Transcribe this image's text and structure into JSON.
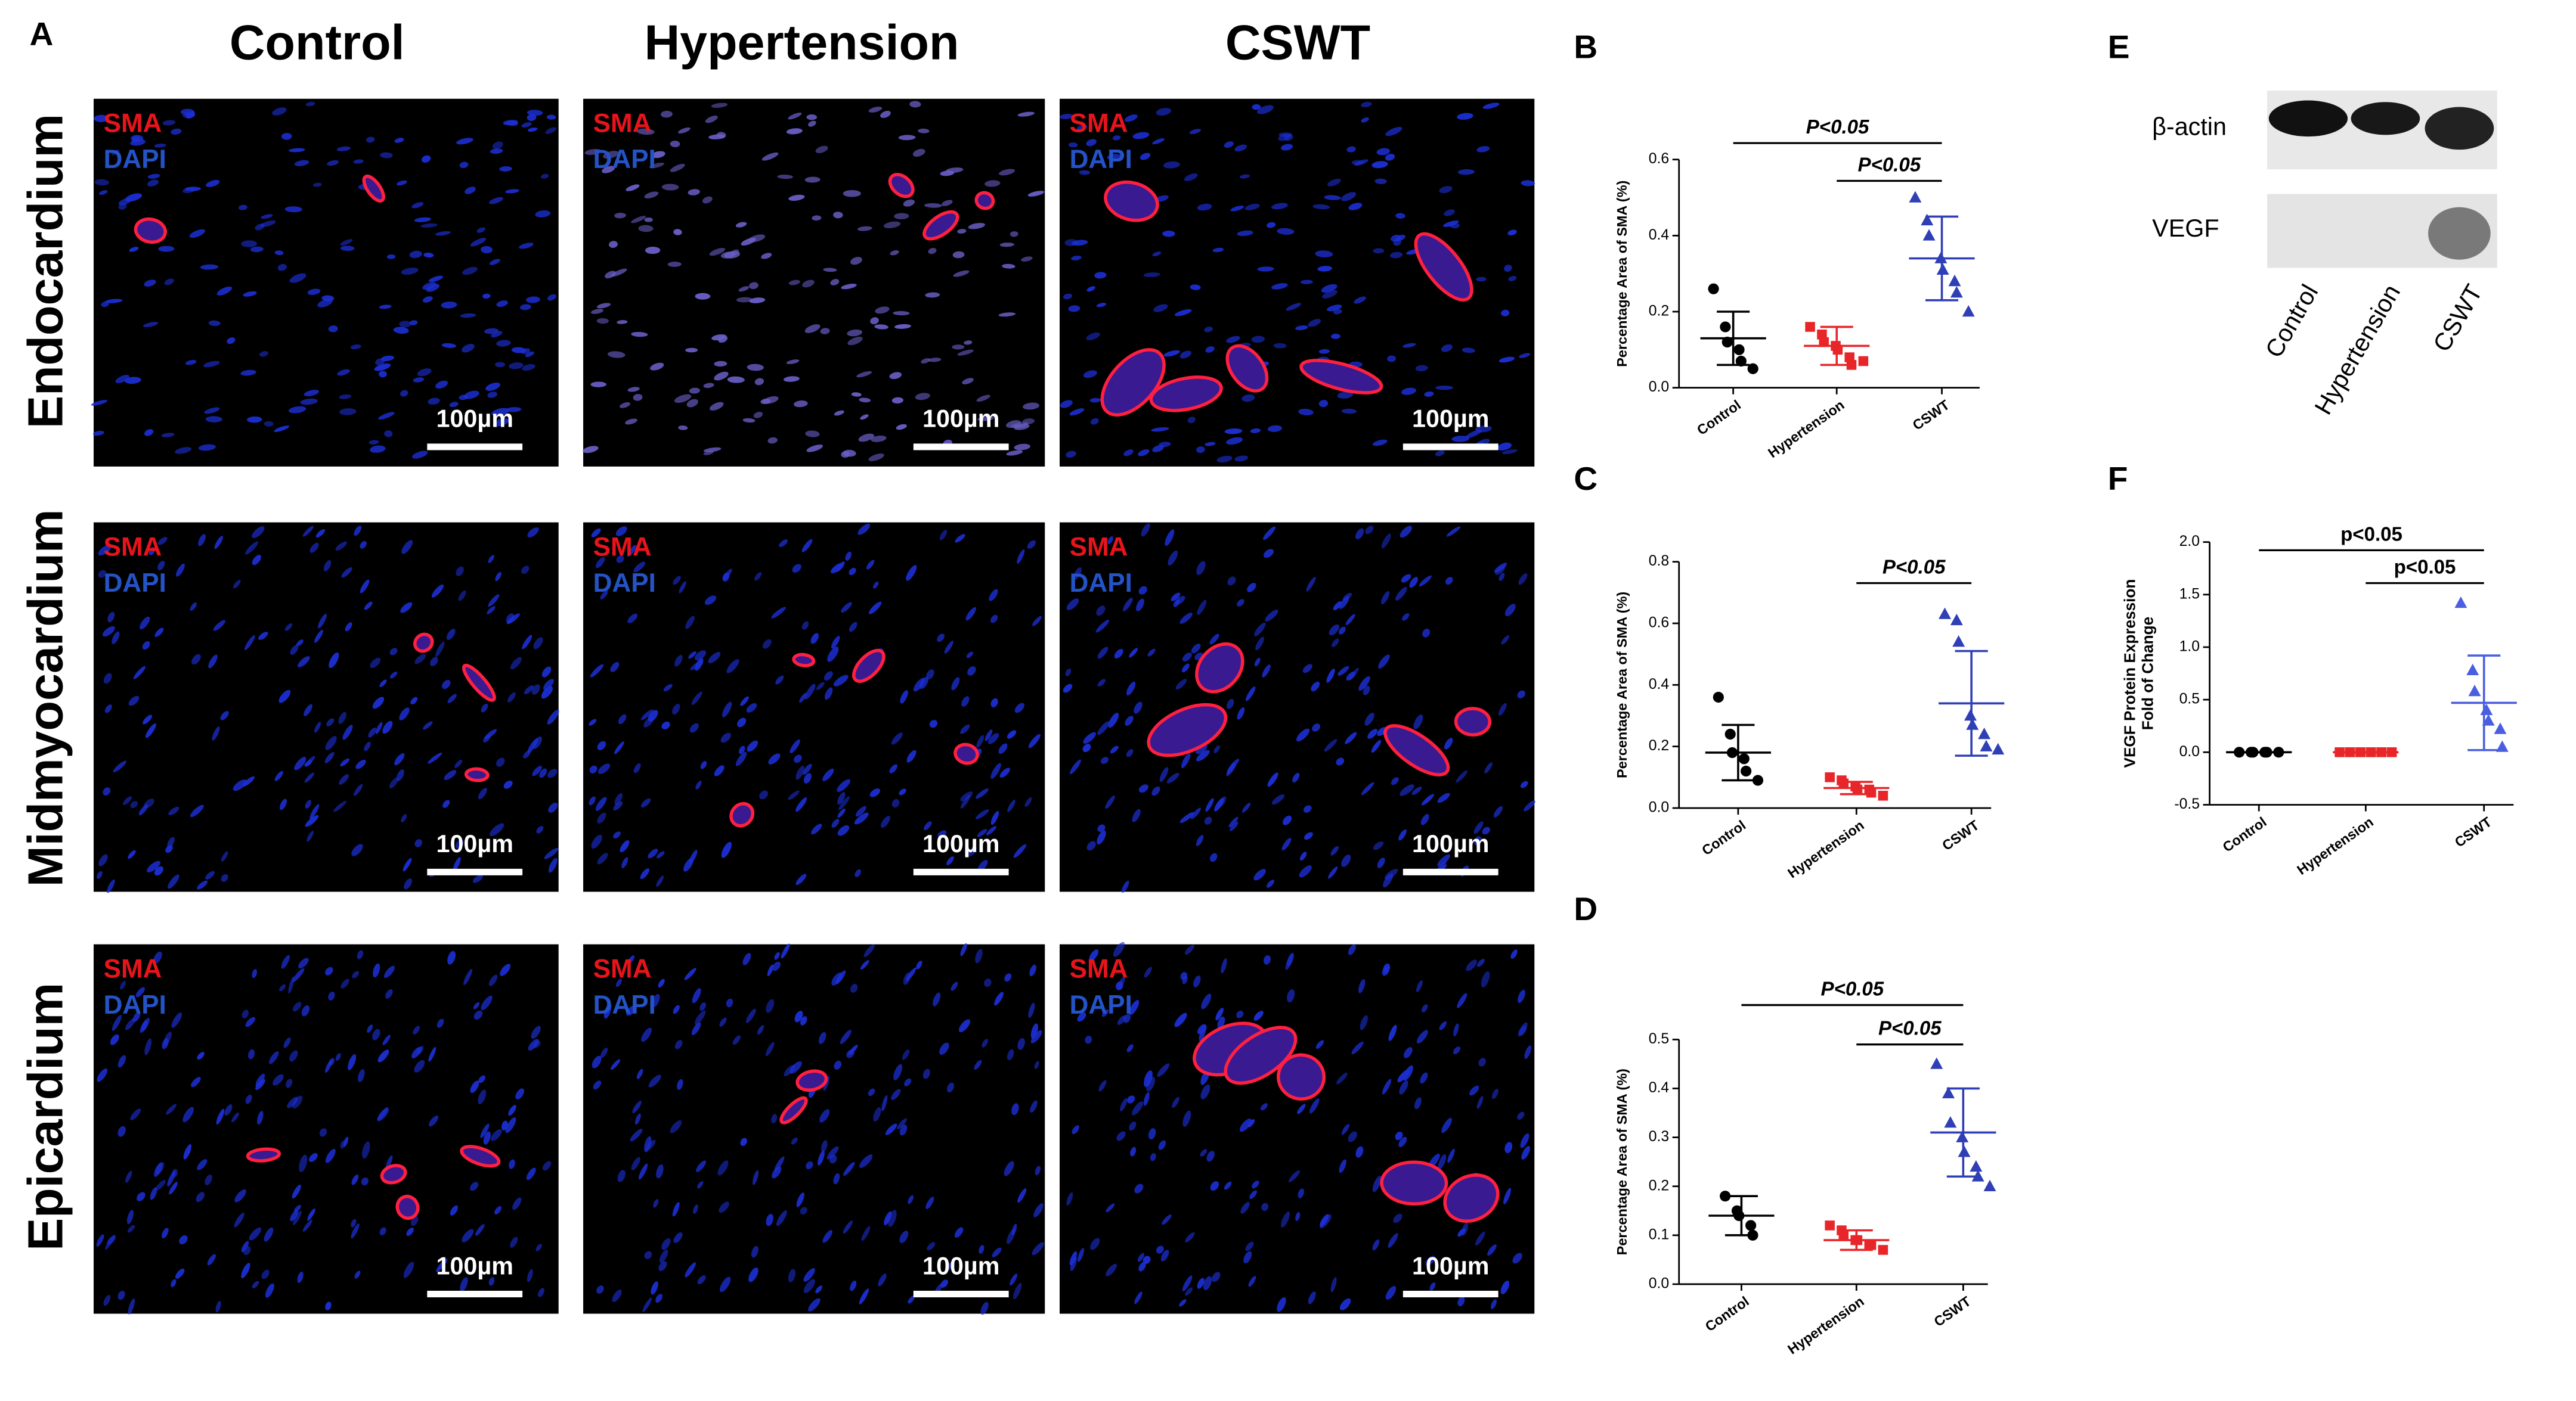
{
  "panel_labels": [
    "A",
    "B",
    "C",
    "D",
    "E",
    "F"
  ],
  "micrographs": {
    "columns": [
      "Control",
      "Hypertension",
      "CSWT"
    ],
    "rows": [
      "Endocardium",
      "Midmyocardium",
      "Epicardium"
    ],
    "stain_labels": [
      "SMA",
      "DAPI"
    ],
    "scale_bar": "100µm"
  },
  "western_blot": {
    "bands": [
      "β-actin",
      "VEGF"
    ],
    "lanes": [
      "Control",
      "Hypertension",
      "CSWT"
    ]
  },
  "chart_data": [
    {
      "type": "dotplot",
      "ylabel": "Percentage Area of SMA (%)",
      "categories": [
        "Control",
        "Hypertension",
        "CSWT"
      ],
      "colors": [
        "#000000",
        "#e8262a",
        "#2f3fb5"
      ],
      "markers": [
        "circle",
        "square",
        "triangle"
      ],
      "values": [
        [
          0.26,
          0.16,
          0.12,
          0.1,
          0.07,
          0.05
        ],
        [
          0.16,
          0.14,
          0.12,
          0.11,
          0.1,
          0.08,
          0.06,
          0.07
        ],
        [
          0.5,
          0.44,
          0.4,
          0.34,
          0.31,
          0.28,
          0.25,
          0.2
        ]
      ],
      "means": [
        0.13,
        0.11,
        0.34
      ],
      "sd": [
        0.07,
        0.05,
        0.11
      ],
      "ylim": [
        0,
        0.6
      ],
      "yticks": [
        {
          "value": 0,
          "label": "0.0"
        },
        0.2,
        0.4,
        0.6
      ],
      "annotations": [
        {
          "text": "P<0.05",
          "from": 0,
          "to": 2
        },
        {
          "text": "P<0.05",
          "from": 1,
          "to": 2
        }
      ]
    },
    {
      "type": "dotplot",
      "ylabel": "Percentage Area of SMA (%)",
      "categories": [
        "Control",
        "Hypertension",
        "CSWT"
      ],
      "colors": [
        "#000000",
        "#e8262a",
        "#2f3fb5"
      ],
      "markers": [
        "circle",
        "square",
        "triangle"
      ],
      "values": [
        [
          0.36,
          0.24,
          0.18,
          0.16,
          0.12,
          0.09
        ],
        [
          0.1,
          0.09,
          0.08,
          0.07,
          0.06,
          0.06,
          0.05,
          0.04
        ],
        [
          0.63,
          0.61,
          0.54,
          0.3,
          0.27,
          0.24,
          0.2,
          0.19
        ]
      ],
      "means": [
        0.18,
        0.065,
        0.34
      ],
      "sd": [
        0.09,
        0.02,
        0.17
      ],
      "ylim": [
        0,
        0.8
      ],
      "yticks": [
        {
          "value": 0,
          "label": "0.0"
        },
        0.2,
        0.4,
        0.6,
        0.8
      ],
      "annotations": [
        {
          "text": "P<0.05",
          "from": 1,
          "to": 2
        }
      ]
    },
    {
      "type": "dotplot",
      "ylabel": "Percentage Area of SMA (%)",
      "categories": [
        "Control",
        "Hypertension",
        "CSWT"
      ],
      "colors": [
        "#000000",
        "#e8262a",
        "#2f3fb5"
      ],
      "markers": [
        "circle",
        "square",
        "triangle"
      ],
      "values": [
        [
          0.18,
          0.15,
          0.14,
          0.12,
          0.1
        ],
        [
          0.12,
          0.11,
          0.1,
          0.09,
          0.09,
          0.08,
          0.08,
          0.07
        ],
        [
          0.45,
          0.39,
          0.33,
          0.3,
          0.27,
          0.24,
          0.22,
          0.2
        ]
      ],
      "means": [
        0.14,
        0.09,
        0.31
      ],
      "sd": [
        0.04,
        0.02,
        0.09
      ],
      "ylim": [
        0,
        0.5
      ],
      "yticks": [
        {
          "value": 0,
          "label": "0.0"
        },
        0.1,
        0.2,
        0.3,
        0.4,
        0.5
      ],
      "annotations": [
        {
          "text": "P<0.05",
          "from": 0,
          "to": 2
        },
        {
          "text": "P<0.05",
          "from": 1,
          "to": 2
        }
      ]
    },
    {
      "type": "dotplot",
      "ylabel": [
        "VEGF Protein Expression",
        "Fold of Change"
      ],
      "categories": [
        "Control",
        "Hypertension",
        "CSWT"
      ],
      "colors": [
        "#000000",
        "#e8262a",
        "#4a5ee0"
      ],
      "markers": [
        "circle",
        "square",
        "triangle"
      ],
      "values": [
        [
          0,
          0,
          0,
          0,
          0,
          0
        ],
        [
          0,
          0,
          0,
          0,
          0,
          0,
          0,
          0,
          0,
          0
        ],
        [
          1.42,
          0.78,
          0.58,
          0.4,
          0.3,
          0.22,
          0.05
        ]
      ],
      "means": [
        0,
        0,
        0.47
      ],
      "sd": [
        0,
        0,
        0.45
      ],
      "ylim": [
        -0.5,
        2.0
      ],
      "yticks": [
        -0.5,
        {
          "value": 0,
          "label": "0.0"
        },
        0.5,
        {
          "value": 1,
          "label": "1.0"
        },
        1.5,
        {
          "value": 2,
          "label": "2.0"
        }
      ],
      "annotations": [
        {
          "text": "p<0.05",
          "from": 0,
          "to": 2
        },
        {
          "text": "p<0.05",
          "from": 1,
          "to": 2
        }
      ]
    }
  ]
}
